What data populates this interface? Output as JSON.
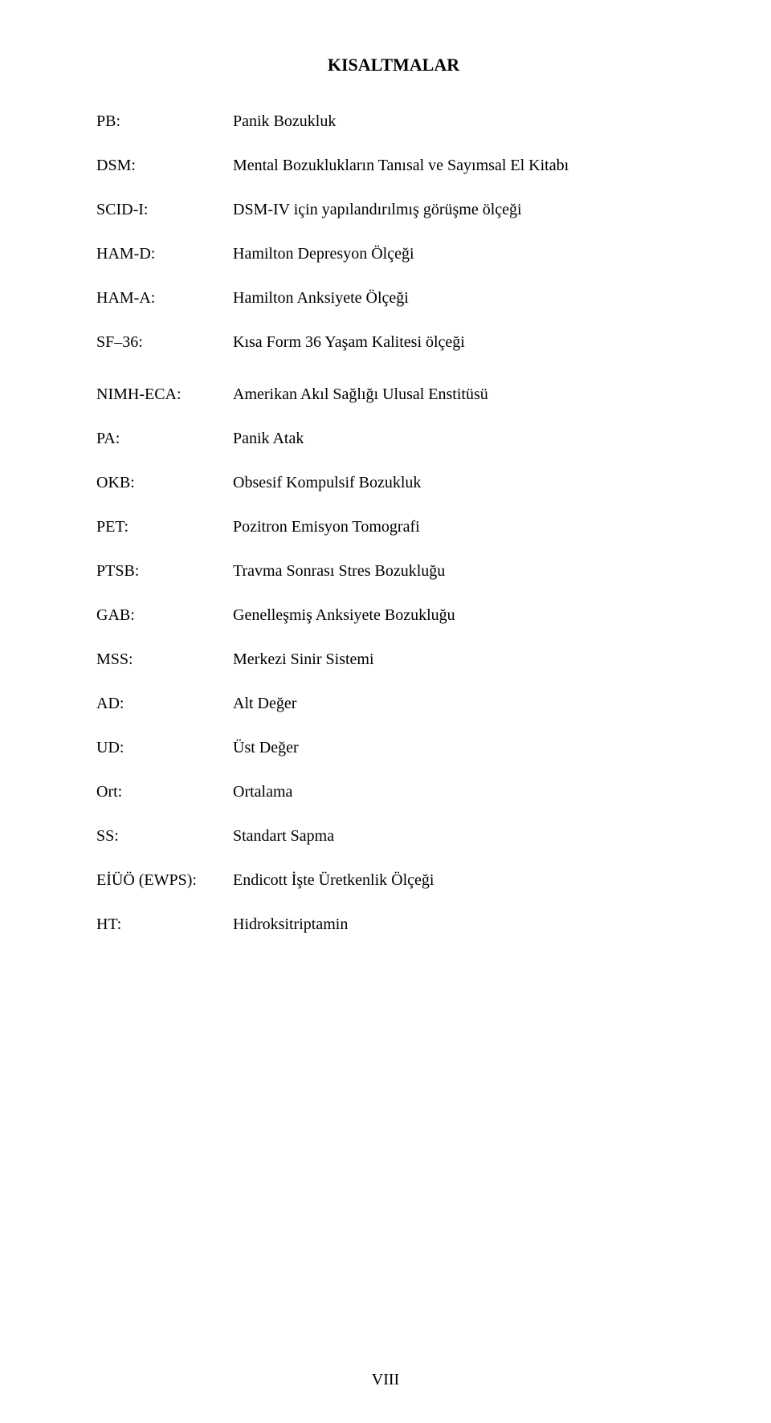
{
  "title": "KISALTMALAR",
  "items": [
    {
      "abbr": "PB:",
      "def": "Panik Bozukluk"
    },
    {
      "abbr": "DSM:",
      "def": "Mental Bozuklukların Tanısal ve Sayımsal El Kitabı"
    },
    {
      "abbr": "SCID-I:",
      "def": "DSM-IV için yapılandırılmış görüşme ölçeği"
    },
    {
      "abbr": "HAM-D:",
      "def": "Hamilton Depresyon Ölçeği"
    },
    {
      "abbr": "HAM-A:",
      "def": "Hamilton Anksiyete Ölçeği"
    },
    {
      "abbr": "SF–36:",
      "def": "Kısa Form 36 Yaşam Kalitesi ölçeği"
    },
    {
      "abbr": "NIMH-ECA:",
      "def": "Amerikan Akıl Sağlığı Ulusal Enstitüsü"
    },
    {
      "abbr": "PA:",
      "def": "Panik Atak"
    },
    {
      "abbr": "OKB:",
      "def": "Obsesif Kompulsif Bozukluk"
    },
    {
      "abbr": "PET:",
      "def": "Pozitron Emisyon Tomografi"
    },
    {
      "abbr": "PTSB:",
      "def": "Travma Sonrası Stres Bozukluğu"
    },
    {
      "abbr": "GAB:",
      "def": "Genelleşmiş Anksiyete Bozukluğu"
    },
    {
      "abbr": "MSS:",
      "def": "Merkezi Sinir Sistemi"
    },
    {
      "abbr": "AD:",
      "def": "Alt Değer"
    },
    {
      "abbr": "UD:",
      "def": "Üst Değer"
    },
    {
      "abbr": "Ort:",
      "def": "Ortalama"
    },
    {
      "abbr": "SS:",
      "def": "Standart Sapma"
    },
    {
      "abbr": "EİÜÖ (EWPS):",
      "def": "Endicott İşte Üretkenlik Ölçeği"
    },
    {
      "abbr": "HT:",
      "def": "Hidroksitriptamin"
    }
  ],
  "page_number": "VIII",
  "colors": {
    "background": "#ffffff",
    "text": "#000000"
  },
  "typography": {
    "font_family": "Times New Roman",
    "title_fontsize": 22,
    "body_fontsize": 20,
    "title_weight": "bold"
  }
}
